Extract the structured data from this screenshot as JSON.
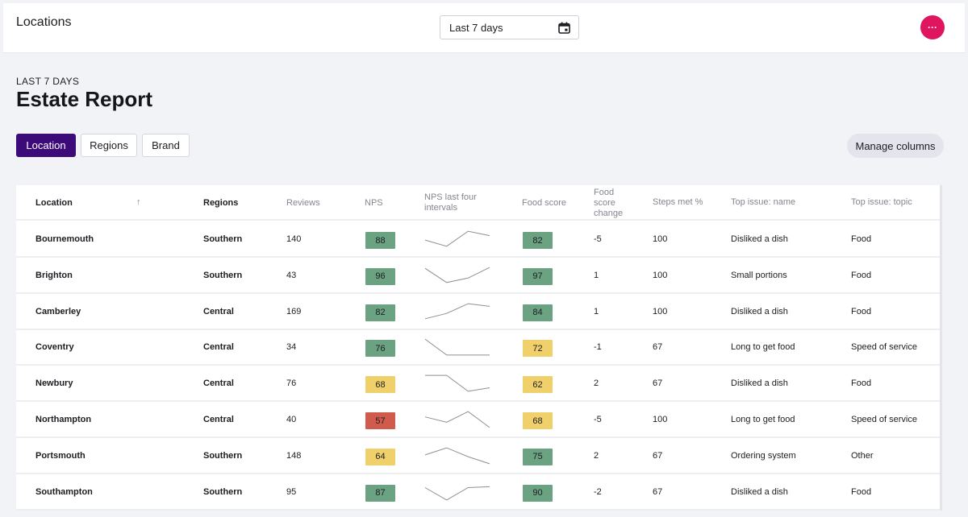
{
  "header": {
    "title": "Locations",
    "date_range": "Last 7 days"
  },
  "page": {
    "subtitle": "LAST 7 DAYS",
    "heading": "Estate Report"
  },
  "tabs": [
    {
      "label": "Location",
      "active": true
    },
    {
      "label": "Regions",
      "active": false
    },
    {
      "label": "Brand",
      "active": false
    }
  ],
  "manage_columns_label": "Manage columns",
  "colors": {
    "accent": "#3d0a7a",
    "menu_button": "#e0155f",
    "score_green": "#6aa282",
    "score_yellow": "#efd06a",
    "score_red": "#d05a4b"
  },
  "columns": {
    "location": "Location",
    "regions": "Regions",
    "reviews": "Reviews",
    "nps": "NPS",
    "nps_trend": "NPS last four intervals",
    "food_score": "Food score",
    "food_change": "Food score change",
    "steps_met": "Steps met %",
    "top_issue_name": "Top issue: name",
    "top_issue_topic": "Top issue: topic"
  },
  "rows": [
    {
      "location": "Bournemouth",
      "region": "Southern",
      "reviews": "140",
      "nps": "88",
      "nps_color": "green",
      "trend": [
        0.45,
        0.1,
        0.95,
        0.7
      ],
      "food": "82",
      "food_color": "green",
      "change": "-5",
      "steps": "100",
      "issue": "Disliked a dish",
      "topic": "Food"
    },
    {
      "location": "Brighton",
      "region": "Southern",
      "reviews": "43",
      "nps": "96",
      "nps_color": "green",
      "trend": [
        0.9,
        0.1,
        0.35,
        0.95
      ],
      "food": "97",
      "food_color": "green",
      "change": "1",
      "steps": "100",
      "issue": "Small portions",
      "topic": "Food"
    },
    {
      "location": "Camberley",
      "region": "Central",
      "reviews": "169",
      "nps": "82",
      "nps_color": "green",
      "trend": [
        0.1,
        0.4,
        0.95,
        0.8
      ],
      "food": "84",
      "food_color": "green",
      "change": "1",
      "steps": "100",
      "issue": "Disliked a dish",
      "topic": "Food"
    },
    {
      "location": "Coventry",
      "region": "Central",
      "reviews": "34",
      "nps": "76",
      "nps_color": "green",
      "trend": [
        0.95,
        0.05,
        0.05,
        0.05
      ],
      "food": "72",
      "food_color": "yellow",
      "change": "-1",
      "steps": "67",
      "issue": "Long to get food",
      "topic": "Speed of service"
    },
    {
      "location": "Newbury",
      "region": "Central",
      "reviews": "76",
      "nps": "68",
      "nps_color": "yellow",
      "trend": [
        0.95,
        0.95,
        0.05,
        0.25
      ],
      "food": "62",
      "food_color": "yellow",
      "change": "2",
      "steps": "67",
      "issue": "Disliked a dish",
      "topic": "Food"
    },
    {
      "location": "Northampton",
      "region": "Central",
      "reviews": "40",
      "nps": "57",
      "nps_color": "red",
      "trend": [
        0.65,
        0.35,
        0.95,
        0.05
      ],
      "food": "68",
      "food_color": "yellow",
      "change": "-5",
      "steps": "100",
      "issue": "Long to get food",
      "topic": "Speed of service"
    },
    {
      "location": "Portsmouth",
      "region": "Southern",
      "reviews": "148",
      "nps": "64",
      "nps_color": "yellow",
      "trend": [
        0.55,
        0.95,
        0.45,
        0.05
      ],
      "food": "75",
      "food_color": "green",
      "change": "2",
      "steps": "67",
      "issue": "Ordering system",
      "topic": "Other"
    },
    {
      "location": "Southampton",
      "region": "Southern",
      "reviews": "95",
      "nps": "87",
      "nps_color": "green",
      "trend": [
        0.75,
        0.05,
        0.75,
        0.8
      ],
      "food": "90",
      "food_color": "green",
      "change": "-2",
      "steps": "67",
      "issue": "Disliked a dish",
      "topic": "Food"
    }
  ]
}
